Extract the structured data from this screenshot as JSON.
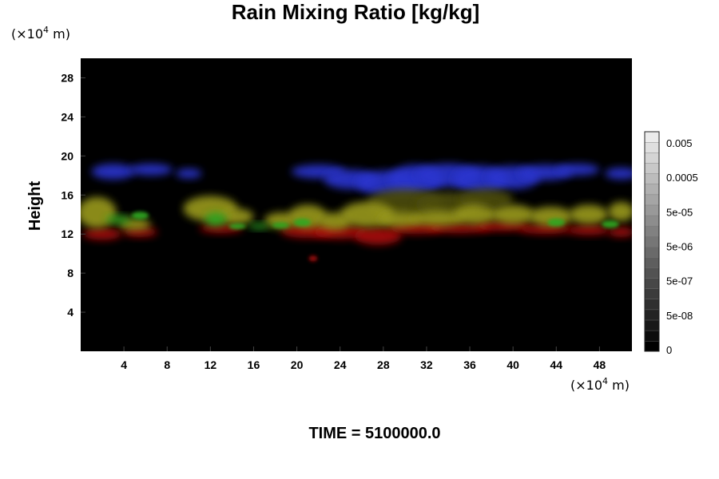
{
  "chart_data": {
    "type": "heatmap",
    "title": "Rain Mixing Ratio [kg/kg]",
    "ylabel": "Height",
    "x_unit_base": "(×10",
    "x_unit_exp": "4",
    "x_unit_tail": " m)",
    "y_unit_base": "(×10",
    "y_unit_exp": "4",
    "y_unit_tail": " m)",
    "xlim": [
      0,
      51
    ],
    "ylim": [
      0,
      30
    ],
    "x_ticks": [
      4,
      8,
      12,
      16,
      20,
      24,
      28,
      32,
      36,
      40,
      44,
      48
    ],
    "y_ticks": [
      4,
      8,
      12,
      16,
      20,
      24,
      28
    ],
    "footer": "TIME = 5100000.0",
    "background": "#000000",
    "colorbar": {
      "labels": [
        "0.005",
        "0.0005",
        "5e-05",
        "5e-06",
        "5e-07",
        "5e-08",
        "0"
      ],
      "n_steps": 21
    },
    "layers": [
      {
        "name": "blue",
        "color": "#2a35cf",
        "blobs": [
          {
            "x": 3,
            "y": 18.4,
            "rx": 2.0,
            "ry": 0.8
          },
          {
            "x": 6.5,
            "y": 18.6,
            "rx": 2.0,
            "ry": 0.6
          },
          {
            "x": 10,
            "y": 18.2,
            "rx": 1.2,
            "ry": 0.5
          },
          {
            "x": 22,
            "y": 18.4,
            "rx": 2.5,
            "ry": 0.7
          },
          {
            "x": 25,
            "y": 17.6,
            "rx": 2.5,
            "ry": 1.0
          },
          {
            "x": 28.5,
            "y": 17.2,
            "rx": 3.0,
            "ry": 1.3
          },
          {
            "x": 31,
            "y": 17.6,
            "rx": 2.5,
            "ry": 1.5
          },
          {
            "x": 34,
            "y": 18.0,
            "rx": 3.0,
            "ry": 1.2
          },
          {
            "x": 37,
            "y": 17.6,
            "rx": 2.5,
            "ry": 1.4
          },
          {
            "x": 40,
            "y": 17.8,
            "rx": 2.5,
            "ry": 1.2
          },
          {
            "x": 43,
            "y": 18.3,
            "rx": 2.5,
            "ry": 0.8
          },
          {
            "x": 46,
            "y": 18.6,
            "rx": 2.0,
            "ry": 0.6
          },
          {
            "x": 50,
            "y": 18.2,
            "rx": 1.5,
            "ry": 0.6
          }
        ]
      },
      {
        "name": "olive",
        "color": "#4d4d10",
        "blobs": [
          {
            "x": 30,
            "y": 15.2,
            "rx": 3.5,
            "ry": 1.4
          },
          {
            "x": 34,
            "y": 15.0,
            "rx": 3.0,
            "ry": 1.3
          },
          {
            "x": 37.5,
            "y": 15.6,
            "rx": 2.5,
            "ry": 1.0
          }
        ]
      },
      {
        "name": "red",
        "color": "#aa1010",
        "blobs": [
          {
            "x": 2,
            "y": 12.0,
            "rx": 1.8,
            "ry": 0.6
          },
          {
            "x": 5.5,
            "y": 12.2,
            "rx": 1.6,
            "ry": 0.5
          },
          {
            "x": 13,
            "y": 12.6,
            "rx": 2.0,
            "ry": 0.5
          },
          {
            "x": 21,
            "y": 12.3,
            "rx": 2.5,
            "ry": 0.7
          },
          {
            "x": 24,
            "y": 12.2,
            "rx": 2.5,
            "ry": 0.7
          },
          {
            "x": 27.5,
            "y": 11.8,
            "rx": 2.2,
            "ry": 0.9
          },
          {
            "x": 31,
            "y": 12.6,
            "rx": 2.5,
            "ry": 0.6
          },
          {
            "x": 35,
            "y": 12.6,
            "rx": 3.0,
            "ry": 0.5
          },
          {
            "x": 39,
            "y": 12.8,
            "rx": 2.5,
            "ry": 0.5
          },
          {
            "x": 43,
            "y": 12.5,
            "rx": 2.5,
            "ry": 0.5
          },
          {
            "x": 47,
            "y": 12.4,
            "rx": 2.0,
            "ry": 0.5
          },
          {
            "x": 50,
            "y": 12.2,
            "rx": 1.2,
            "ry": 0.5
          },
          {
            "x": 21.5,
            "y": 9.5,
            "rx": 0.4,
            "ry": 0.3
          }
        ]
      },
      {
        "name": "yellow",
        "color": "#9a9a1c",
        "blobs": [
          {
            "x": 1.5,
            "y": 14.2,
            "rx": 1.8,
            "ry": 1.6
          },
          {
            "x": 5,
            "y": 13.0,
            "rx": 1.5,
            "ry": 0.6
          },
          {
            "x": 12,
            "y": 14.6,
            "rx": 2.5,
            "ry": 1.3
          },
          {
            "x": 14.5,
            "y": 13.8,
            "rx": 1.5,
            "ry": 0.8
          },
          {
            "x": 18.5,
            "y": 13.4,
            "rx": 1.5,
            "ry": 0.8
          },
          {
            "x": 21,
            "y": 13.8,
            "rx": 1.8,
            "ry": 1.2
          },
          {
            "x": 23.5,
            "y": 13.3,
            "rx": 1.5,
            "ry": 0.9
          },
          {
            "x": 26.5,
            "y": 14.0,
            "rx": 2.5,
            "ry": 1.3
          },
          {
            "x": 29.5,
            "y": 13.5,
            "rx": 2.0,
            "ry": 0.8
          },
          {
            "x": 33,
            "y": 13.6,
            "rx": 2.5,
            "ry": 0.8
          },
          {
            "x": 36.5,
            "y": 14.0,
            "rx": 2.0,
            "ry": 1.0
          },
          {
            "x": 40,
            "y": 14.0,
            "rx": 2.0,
            "ry": 1.0
          },
          {
            "x": 43.5,
            "y": 13.8,
            "rx": 2.0,
            "ry": 1.0
          },
          {
            "x": 47,
            "y": 14.0,
            "rx": 1.8,
            "ry": 1.0
          },
          {
            "x": 50,
            "y": 14.3,
            "rx": 1.2,
            "ry": 1.0
          }
        ]
      },
      {
        "name": "green",
        "color": "#2fa820",
        "blobs": [
          {
            "x": 3.5,
            "y": 13.5,
            "rx": 1.2,
            "ry": 0.4
          },
          {
            "x": 5.5,
            "y": 13.9,
            "rx": 0.8,
            "ry": 0.4
          },
          {
            "x": 12.5,
            "y": 13.5,
            "rx": 1.0,
            "ry": 0.7
          },
          {
            "x": 14.5,
            "y": 12.8,
            "rx": 0.8,
            "ry": 0.3
          },
          {
            "x": 16.5,
            "y": 12.8,
            "rx": 1.0,
            "ry": 0.3
          },
          {
            "x": 18.5,
            "y": 12.9,
            "rx": 0.8,
            "ry": 0.3
          },
          {
            "x": 20.5,
            "y": 13.2,
            "rx": 0.8,
            "ry": 0.4
          },
          {
            "x": 44,
            "y": 13.2,
            "rx": 0.8,
            "ry": 0.4
          },
          {
            "x": 49,
            "y": 13.0,
            "rx": 0.8,
            "ry": 0.4
          }
        ]
      }
    ]
  }
}
